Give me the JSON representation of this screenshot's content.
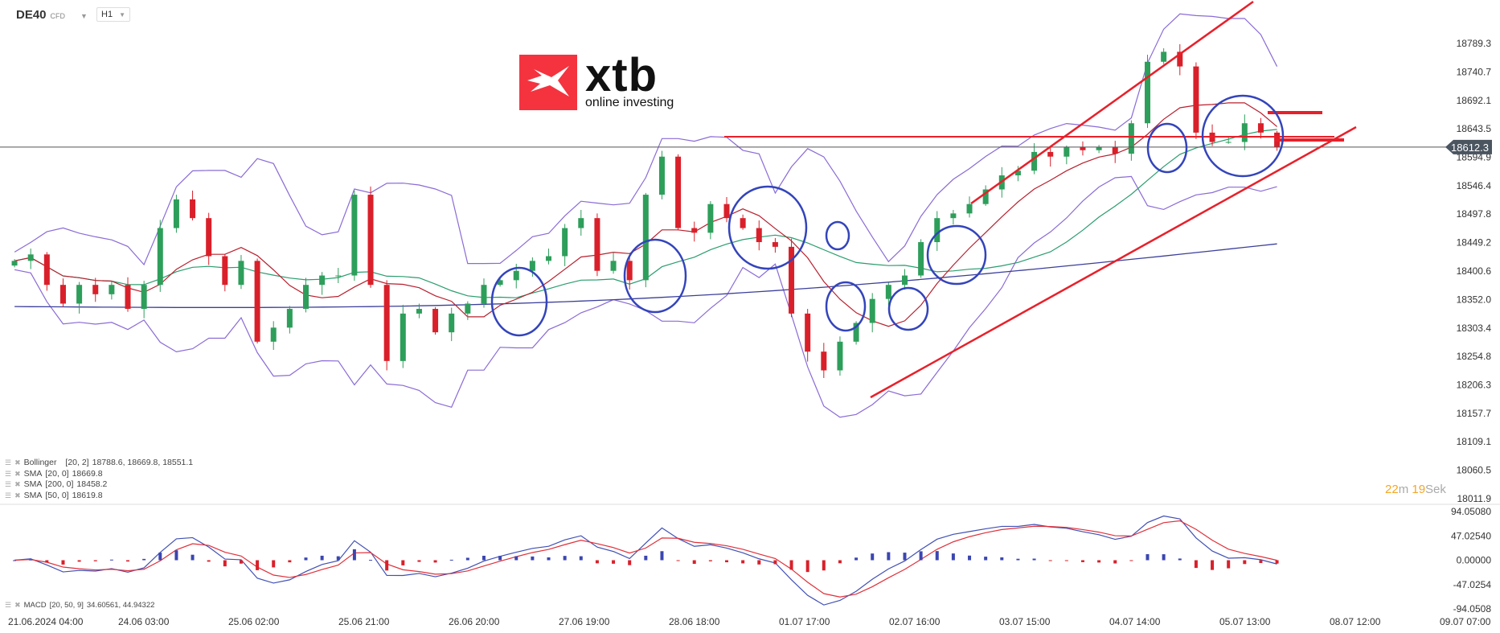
{
  "header": {
    "symbol": "DE40",
    "instrument_type": "CFD",
    "timeframe": "H1"
  },
  "logo": {
    "brand": "xtb",
    "tagline": "online investing"
  },
  "legend": [
    {
      "label": "Bollinger",
      "params": "[20, 2]",
      "values": "18788.6,  18669.8,  18551.1",
      "color": "#8a6bd6"
    },
    {
      "label": "SMA",
      "params": "[20, 0]",
      "values": "18669.8",
      "color": "#b8202e"
    },
    {
      "label": "SMA",
      "params": "[200, 0]",
      "values": "18458.2",
      "color": "#3b3f9a"
    },
    {
      "label": "SMA",
      "params": "[50, 0]",
      "values": "18619.8",
      "color": "#2a9d6e"
    }
  ],
  "macd_legend": {
    "label": "MACD",
    "params": "[20, 50, 9]",
    "values": "34.60561,  44.94322"
  },
  "timer": {
    "minutes": "22",
    "m_unit": "m",
    "seconds": "19",
    "s_unit": "Sek"
  },
  "chart_data": {
    "type": "candlestick",
    "current_price": "18612.3",
    "y_ticks": [
      "18789.3",
      "18740.7",
      "18692.1",
      "18643.5",
      "18594.9",
      "18546.4",
      "18497.8",
      "18449.2",
      "18400.6",
      "18352.0",
      "18303.4",
      "18254.8",
      "18206.3",
      "18157.7",
      "18109.1",
      "18060.5",
      "18011.9"
    ],
    "ylim": [
      18011.9,
      18789.3
    ],
    "macd_ticks": [
      "94.05080",
      "47.02540",
      "0.00000",
      "-47.0254",
      "-94.0508"
    ],
    "x_ticks": [
      "21.06.2024  04:00",
      "24.06  03:00",
      "25.06  02:00",
      "25.06  21:00",
      "26.06  20:00",
      "27.06  19:00",
      "28.06  18:00",
      "01.07  17:00",
      "02.07  16:00",
      "03.07  15:00",
      "04.07  14:00",
      "05.07  13:00",
      "08.07  12:00",
      "09.07  07:00"
    ],
    "closes": [
      18418,
      18429,
      18377,
      18345,
      18377,
      18361,
      18377,
      18336,
      18377,
      18474,
      18523,
      18491,
      18426,
      18377,
      18418,
      18280,
      18304,
      18336,
      18377,
      18393,
      18393,
      18531,
      18377,
      18247,
      18328,
      18336,
      18296,
      18328,
      18345,
      18377,
      18385,
      18401,
      18418,
      18426,
      18474,
      18491,
      18401,
      18418,
      18385,
      18531,
      18596,
      18474,
      18466,
      18515,
      18491,
      18474,
      18450,
      18442,
      18328,
      18263,
      18231,
      18280,
      18312,
      18353,
      18377,
      18393,
      18450,
      18491,
      18499,
      18515,
      18540,
      18564,
      18572,
      18604,
      18596,
      18612,
      18607,
      18612,
      18601,
      18653,
      18758,
      18775,
      18750,
      18637,
      18621,
      18621,
      18653,
      18637,
      18612
    ],
    "colors": {
      "up": "#2e9e5b",
      "down": "#d9202a",
      "bollinger": "#8a6bd6",
      "sma20": "#b8202e",
      "sma50": "#2a9d6e",
      "sma200": "#3b3f9a",
      "macd_line": "#4050b5",
      "signal_line": "#e0303a",
      "hist_up": "#3a46b0",
      "hist_down": "#d9202a",
      "annotation_lines": "#e8202a",
      "annotation_circles": "#3344bb"
    }
  }
}
